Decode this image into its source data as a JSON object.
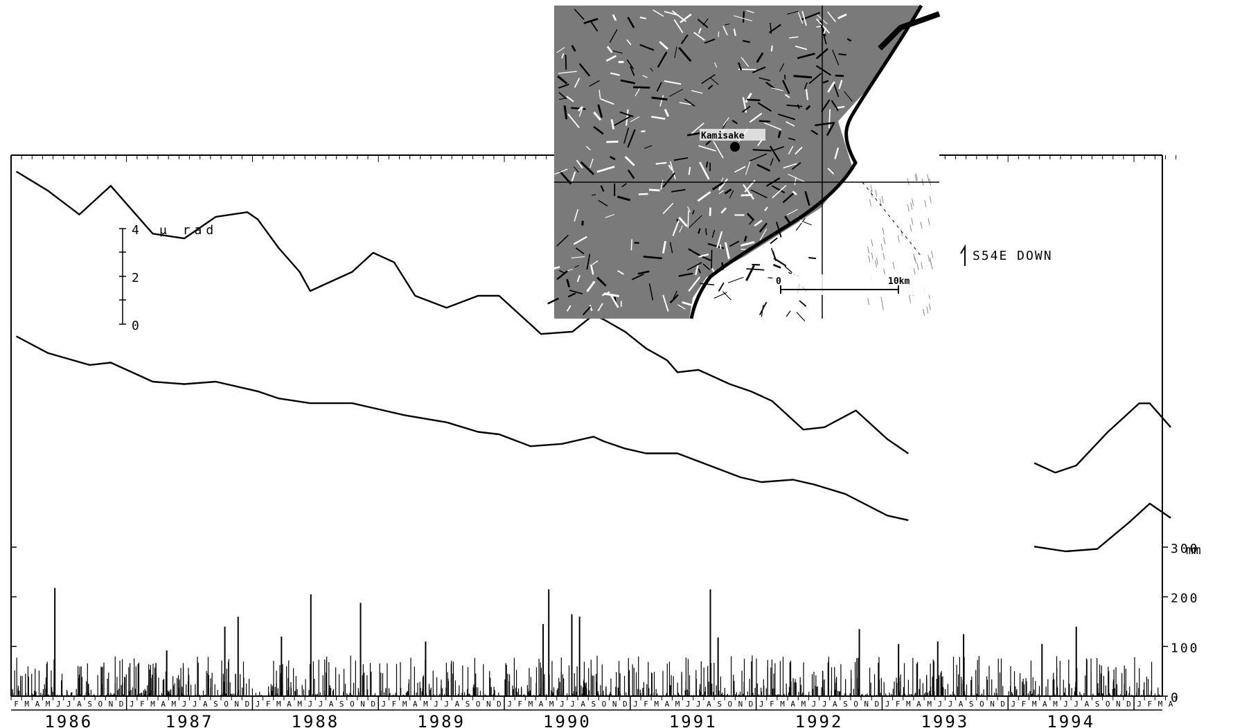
{
  "chart_data": {
    "type": "line",
    "title": "",
    "x_axis": {
      "start": "1986-02",
      "end": "1995-04",
      "month_letters": [
        "J",
        "F",
        "M",
        "A",
        "M",
        "J",
        "J",
        "A",
        "S",
        "O",
        "N",
        "D"
      ],
      "year_labels": [
        "1986",
        "1987",
        "1988",
        "1989",
        "1990",
        "1991",
        "1992",
        "1993",
        "1994"
      ]
    },
    "tilt_scale": {
      "label": "μ rad",
      "ticks": [
        "0",
        "2",
        "4"
      ],
      "range": [
        0,
        4
      ]
    },
    "rain_axis": {
      "unit": "mm",
      "ticks": [
        "0",
        "100",
        "200",
        "300"
      ],
      "range": [
        0,
        300
      ]
    },
    "annotation": "S54E DOWN",
    "map": {
      "station": "Kamisake",
      "scale_labels": [
        "0",
        "10km"
      ],
      "description": "inset topographic map of coastal area"
    },
    "series": [
      {
        "type": "line",
        "points": [
          [
            "1986-02",
            3.2
          ],
          [
            "1986-05",
            2.4
          ],
          [
            "1986-08",
            1.4
          ],
          [
            "1986-11",
            2.6
          ],
          [
            "1987-03",
            0.6
          ],
          [
            "1987-06",
            0.4
          ],
          [
            "1987-09",
            1.3
          ],
          [
            "1987-12",
            1.5
          ],
          [
            "1988-01",
            1.2
          ],
          [
            "1988-03",
            0.0
          ],
          [
            "1988-05",
            -1.0
          ],
          [
            "1988-06",
            -1.8
          ],
          [
            "1988-10",
            -1.0
          ],
          [
            "1988-12",
            -0.2
          ],
          [
            "1989-02",
            -0.6
          ],
          [
            "1989-04",
            -2.0
          ],
          [
            "1989-07",
            -2.5
          ],
          [
            "1989-10",
            -2.0
          ],
          [
            "1989-12",
            -2.0
          ],
          [
            "1990-02",
            -2.8
          ],
          [
            "1990-04",
            -3.6
          ],
          [
            "1990-07",
            -3.5
          ],
          [
            "1990-09",
            -2.8
          ],
          [
            "1990-10",
            -3.0
          ],
          [
            "1990-12",
            -3.5
          ],
          [
            "1991-02",
            -4.2
          ],
          [
            "1991-04",
            -4.7
          ],
          [
            "1991-05",
            -5.2
          ],
          [
            "1991-07",
            -5.1
          ],
          [
            "1991-10",
            -5.7
          ],
          [
            "1991-12",
            -6.0
          ],
          [
            "1992-02",
            -6.4
          ],
          [
            "1992-05",
            -7.6
          ],
          [
            "1992-07",
            -7.5
          ],
          [
            "1992-10",
            -6.8
          ],
          [
            "1993-01",
            -8.0
          ],
          [
            "1993-03",
            -8.6
          ],
          [
            "1994-03",
            -9.0
          ],
          [
            "1994-05",
            -9.4
          ],
          [
            "1994-07",
            -9.1
          ],
          [
            "1994-10",
            -7.7
          ],
          [
            "1995-01",
            -6.5
          ],
          [
            "1995-02",
            -6.5
          ],
          [
            "1995-04",
            -7.5
          ]
        ]
      },
      {
        "type": "line",
        "points": [
          [
            "1986-02",
            1.0
          ],
          [
            "1986-05",
            0.3
          ],
          [
            "1986-09",
            -0.2
          ],
          [
            "1986-11",
            -0.1
          ],
          [
            "1987-03",
            -0.9
          ],
          [
            "1987-06",
            -1.0
          ],
          [
            "1987-09",
            -0.9
          ],
          [
            "1987-12",
            -1.2
          ],
          [
            "1988-01",
            -1.3
          ],
          [
            "1988-03",
            -1.6
          ],
          [
            "1988-06",
            -1.8
          ],
          [
            "1988-10",
            -1.8
          ],
          [
            "1988-12",
            -2.0
          ],
          [
            "1989-03",
            -2.3
          ],
          [
            "1989-07",
            -2.6
          ],
          [
            "1989-10",
            -3.0
          ],
          [
            "1989-12",
            -3.1
          ],
          [
            "1990-03",
            -3.6
          ],
          [
            "1990-06",
            -3.5
          ],
          [
            "1990-09",
            -3.2
          ],
          [
            "1990-10",
            -3.4
          ],
          [
            "1990-12",
            -3.7
          ],
          [
            "1991-02",
            -3.9
          ],
          [
            "1991-04",
            -3.9
          ],
          [
            "1991-05",
            -3.9
          ],
          [
            "1991-08",
            -4.4
          ],
          [
            "1991-11",
            -4.9
          ],
          [
            "1992-01",
            -5.1
          ],
          [
            "1992-04",
            -5.0
          ],
          [
            "1992-06",
            -5.2
          ],
          [
            "1992-09",
            -5.6
          ],
          [
            "1993-01",
            -6.5
          ],
          [
            "1993-03",
            -6.7
          ],
          [
            "1994-03",
            -7.8
          ],
          [
            "1994-06",
            -8.0
          ],
          [
            "1994-09",
            -7.9
          ],
          [
            "1994-12",
            -6.8
          ],
          [
            "1995-02",
            -6.0
          ],
          [
            "1995-04",
            -6.6
          ]
        ]
      }
    ],
    "rain_bars": [
      [
        "1986-06",
        218
      ],
      [
        "1987-11",
        160
      ],
      [
        "1987-10",
        140
      ],
      [
        "1987-04",
        92
      ],
      [
        "1988-06",
        205
      ],
      [
        "1988-11",
        188
      ],
      [
        "1988-03",
        120
      ],
      [
        "1989-05",
        110
      ],
      [
        "1990-05",
        215
      ],
      [
        "1990-04",
        145
      ],
      [
        "1990-07",
        165
      ],
      [
        "1990-08",
        160
      ],
      [
        "1991-08",
        215
      ],
      [
        "1991-09",
        118
      ],
      [
        "1992-10",
        135
      ],
      [
        "1993-02",
        105
      ],
      [
        "1993-06",
        110
      ],
      [
        "1993-08",
        125
      ],
      [
        "1994-07",
        140
      ],
      [
        "1994-04",
        105
      ]
    ]
  }
}
